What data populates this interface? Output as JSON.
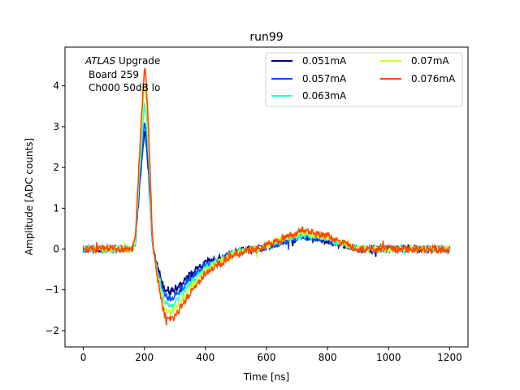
{
  "chart_data": {
    "type": "line",
    "title": "run99",
    "xlabel": "Time [ns]",
    "ylabel": "Amplitude [ADC counts]",
    "xlim": [
      -60,
      1260
    ],
    "ylim": [
      -2.4,
      4.95
    ],
    "xticks": [
      0,
      200,
      400,
      600,
      800,
      1000,
      1200
    ],
    "xtick_labels": [
      "0",
      "200",
      "400",
      "600",
      "800",
      "1000",
      "1200"
    ],
    "yticks": [
      -2,
      -1,
      0,
      1,
      2,
      3,
      4
    ],
    "ytick_labels": [
      "−2",
      "−1",
      "0",
      "1",
      "2",
      "3",
      "4"
    ],
    "grid": false,
    "legend_position": "top-right",
    "legend_columns": 2,
    "annotation": {
      "line1_italic": "ATLAS",
      "line1_rest": " Upgrade",
      "line2": "Board 259",
      "line3": "Ch000 50dB lo"
    },
    "pulse_shape": {
      "time": [
        0,
        160,
        170,
        185,
        200,
        205,
        215,
        225,
        245,
        265,
        285,
        300,
        340,
        400,
        500,
        640,
        720,
        800,
        900,
        1200
      ],
      "amplitude_normalized": [
        0,
        0,
        0.05,
        0.55,
        1.0,
        0.95,
        0.6,
        0.12,
        -0.42,
        -0.82,
        -0.9,
        -0.85,
        -0.6,
        -0.3,
        -0.05,
        0.05,
        0.1,
        0.07,
        0.0,
        0.0
      ]
    },
    "series": [
      {
        "name": "0.051mA",
        "color": "#00007f",
        "peak": 2.85,
        "trough": -1.15,
        "noise": 0.09
      },
      {
        "name": "0.057mA",
        "color": "#0050ff",
        "peak": 3.05,
        "trough": -1.35,
        "noise": 0.08
      },
      {
        "name": "0.063mA",
        "color": "#29ffce",
        "peak": 3.55,
        "trough": -1.55,
        "noise": 0.08
      },
      {
        "name": "0.07mA",
        "color": "#ceff29",
        "peak": 4.05,
        "trough": -1.75,
        "noise": 0.08
      },
      {
        "name": "0.076mA",
        "color": "#ff4800",
        "peak": 4.45,
        "trough": -1.95,
        "noise": 0.09
      }
    ]
  }
}
